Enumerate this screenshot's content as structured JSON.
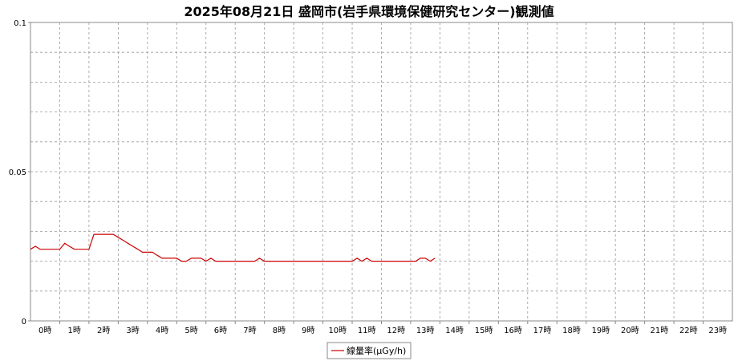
{
  "chart_data": {
    "type": "line",
    "title": "2025年08月21日 盛岡市(岩手県環境保健研究センター)観測値",
    "xlabel": "",
    "ylabel": "",
    "x_ticks": [
      "0時",
      "1時",
      "2時",
      "3時",
      "4時",
      "5時",
      "6時",
      "7時",
      "8時",
      "9時",
      "10時",
      "11時",
      "12時",
      "13時",
      "14時",
      "15時",
      "16時",
      "17時",
      "18時",
      "19時",
      "20時",
      "21時",
      "22時",
      "23時"
    ],
    "y_ticks": [
      "0",
      "0.05",
      "0.1"
    ],
    "xlim": [
      0,
      24
    ],
    "ylim": [
      0,
      0.1
    ],
    "grid": true,
    "legend_position": "bottom-center",
    "series": [
      {
        "name": "線量率(μGy/h)",
        "color": "#cc0000",
        "x": [
          0.0,
          0.17,
          0.33,
          0.5,
          0.67,
          0.83,
          1.0,
          1.17,
          1.33,
          1.5,
          1.67,
          1.83,
          2.0,
          2.17,
          2.33,
          2.5,
          2.67,
          2.83,
          3.0,
          3.17,
          3.33,
          3.5,
          3.67,
          3.83,
          4.0,
          4.17,
          4.33,
          4.5,
          4.67,
          4.83,
          5.0,
          5.17,
          5.33,
          5.5,
          5.67,
          5.83,
          6.0,
          6.17,
          6.33,
          6.5,
          6.67,
          6.83,
          7.0,
          7.17,
          7.33,
          7.5,
          7.67,
          7.83,
          8.0,
          8.17,
          8.33,
          8.5,
          8.67,
          8.83,
          9.0,
          9.17,
          9.33,
          9.5,
          9.67,
          9.83,
          10.0,
          10.17,
          10.33,
          10.5,
          10.67,
          10.83,
          11.0,
          11.17,
          11.33,
          11.5,
          11.67,
          11.83,
          12.0,
          12.17,
          12.33,
          12.5,
          12.67,
          12.83,
          13.0,
          13.17,
          13.33,
          13.5,
          13.67,
          13.83
        ],
        "values": [
          0.024,
          0.025,
          0.024,
          0.024,
          0.024,
          0.024,
          0.024,
          0.026,
          0.025,
          0.024,
          0.024,
          0.024,
          0.024,
          0.029,
          0.029,
          0.029,
          0.029,
          0.029,
          0.028,
          0.027,
          0.026,
          0.025,
          0.024,
          0.023,
          0.023,
          0.023,
          0.022,
          0.021,
          0.021,
          0.021,
          0.021,
          0.02,
          0.02,
          0.021,
          0.021,
          0.021,
          0.02,
          0.021,
          0.02,
          0.02,
          0.02,
          0.02,
          0.02,
          0.02,
          0.02,
          0.02,
          0.02,
          0.021,
          0.02,
          0.02,
          0.02,
          0.02,
          0.02,
          0.02,
          0.02,
          0.02,
          0.02,
          0.02,
          0.02,
          0.02,
          0.02,
          0.02,
          0.02,
          0.02,
          0.02,
          0.02,
          0.02,
          0.021,
          0.02,
          0.021,
          0.02,
          0.02,
          0.02,
          0.02,
          0.02,
          0.02,
          0.02,
          0.02,
          0.02,
          0.02,
          0.021,
          0.021,
          0.02,
          0.021
        ]
      }
    ]
  }
}
